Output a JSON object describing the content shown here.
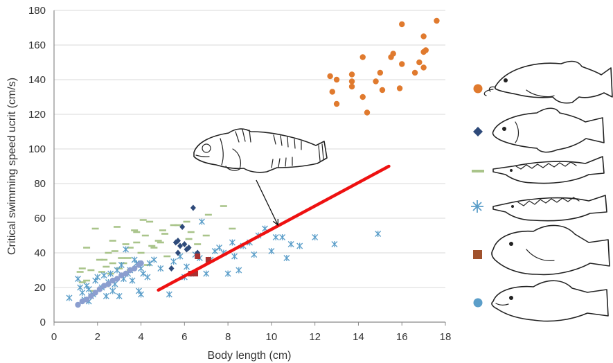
{
  "chart_data": {
    "type": "scatter",
    "title": "",
    "xlabel": "Body length (cm)",
    "ylabel": "Critical swimming speed ucrit (cm/s)",
    "xlim": [
      0,
      18
    ],
    "ylim": [
      0,
      180
    ],
    "xticks": [
      0,
      2,
      4,
      6,
      8,
      10,
      12,
      14,
      16,
      18
    ],
    "yticks": [
      0,
      20,
      40,
      60,
      80,
      100,
      120,
      140,
      160,
      180
    ],
    "grid": "horizontal",
    "legend": "right, fish drawings with marker keys",
    "colors": {
      "orange_circle": "#e07a2e",
      "dark_diamond": "#2e4a7a",
      "green_dash": "#a9c48a",
      "blue_asterisk": "#5b9ec9",
      "red_square": "#a83232",
      "light_circle": "#8b9ecf",
      "fit_line": "#ee1111"
    },
    "series": [
      {
        "marker": "orange-circle",
        "points": [
          [
            12.7,
            142
          ],
          [
            12.8,
            133
          ],
          [
            13,
            140
          ],
          [
            13,
            126
          ],
          [
            13.7,
            143
          ],
          [
            13.7,
            139
          ],
          [
            13.7,
            136
          ],
          [
            14.2,
            153
          ],
          [
            14.2,
            130
          ],
          [
            14.4,
            121
          ],
          [
            14.8,
            139
          ],
          [
            15,
            144
          ],
          [
            15.1,
            134
          ],
          [
            15.5,
            153
          ],
          [
            15.6,
            155
          ],
          [
            15.9,
            135
          ],
          [
            16,
            149
          ],
          [
            16,
            172
          ],
          [
            16.6,
            144
          ],
          [
            16.8,
            150
          ],
          [
            17,
            165
          ],
          [
            17,
            156
          ],
          [
            17,
            147
          ],
          [
            17.1,
            157
          ],
          [
            17.6,
            174
          ]
        ]
      },
      {
        "marker": "dark-diamond",
        "points": [
          [
            5.6,
            46
          ],
          [
            5.7,
            47
          ],
          [
            5.7,
            40
          ],
          [
            5.8,
            44
          ],
          [
            5.9,
            55
          ],
          [
            6.0,
            45
          ],
          [
            6.1,
            42
          ],
          [
            6.2,
            43
          ],
          [
            6.4,
            66
          ],
          [
            5.4,
            31
          ],
          [
            6.6,
            40
          ]
        ]
      },
      {
        "marker": "green-dash",
        "points": [
          [
            1.2,
            29
          ],
          [
            1.3,
            31
          ],
          [
            1.3,
            23
          ],
          [
            1.5,
            24
          ],
          [
            1.5,
            43
          ],
          [
            1.7,
            30
          ],
          [
            1.8,
            18
          ],
          [
            1.9,
            54
          ],
          [
            2.1,
            36
          ],
          [
            2.2,
            29
          ],
          [
            2.3,
            36
          ],
          [
            2.4,
            32
          ],
          [
            2.5,
            40
          ],
          [
            2.6,
            28
          ],
          [
            2.7,
            34
          ],
          [
            2.7,
            47
          ],
          [
            2.8,
            41
          ],
          [
            2.9,
            55
          ],
          [
            3,
            31
          ],
          [
            3.1,
            37
          ],
          [
            3.2,
            34
          ],
          [
            3.3,
            45
          ],
          [
            3.4,
            37
          ],
          [
            3.5,
            43
          ],
          [
            3.5,
            30
          ],
          [
            3.7,
            53
          ],
          [
            3.8,
            52
          ],
          [
            3.8,
            46
          ],
          [
            4,
            40
          ],
          [
            4.1,
            59
          ],
          [
            4.2,
            50
          ],
          [
            4.3,
            33
          ],
          [
            4.4,
            58
          ],
          [
            4.5,
            44
          ],
          [
            4.6,
            43
          ],
          [
            4.8,
            47
          ],
          [
            4.9,
            46
          ],
          [
            5,
            53
          ],
          [
            5.1,
            51
          ],
          [
            5.2,
            38
          ],
          [
            5.5,
            56
          ],
          [
            5.7,
            56
          ],
          [
            6.1,
            58
          ],
          [
            6.2,
            48
          ],
          [
            6.3,
            52
          ],
          [
            6.6,
            45
          ],
          [
            7.0,
            50
          ],
          [
            7.1,
            62
          ],
          [
            7.8,
            67
          ],
          [
            8.2,
            54
          ]
        ]
      },
      {
        "marker": "blue-asterisk",
        "points": [
          [
            0.7,
            14
          ],
          [
            1.1,
            25
          ],
          [
            1.2,
            20
          ],
          [
            1.3,
            17
          ],
          [
            1.4,
            13
          ],
          [
            1.5,
            21
          ],
          [
            1.6,
            19
          ],
          [
            1.6,
            12
          ],
          [
            1.7,
            15
          ],
          [
            1.8,
            16
          ],
          [
            1.9,
            24
          ],
          [
            2.0,
            26
          ],
          [
            2.2,
            20
          ],
          [
            2.3,
            27
          ],
          [
            2.4,
            15
          ],
          [
            2.5,
            23
          ],
          [
            2.6,
            28
          ],
          [
            2.7,
            18
          ],
          [
            2.8,
            22
          ],
          [
            2.9,
            30
          ],
          [
            3.0,
            15
          ],
          [
            3.1,
            33
          ],
          [
            3.2,
            25
          ],
          [
            3.3,
            42
          ],
          [
            3.4,
            28
          ],
          [
            3.5,
            30
          ],
          [
            3.6,
            24
          ],
          [
            3.7,
            36
          ],
          [
            3.8,
            34
          ],
          [
            3.9,
            18
          ],
          [
            4.0,
            16
          ],
          [
            4.0,
            31
          ],
          [
            4.1,
            28
          ],
          [
            4.3,
            26
          ],
          [
            4.4,
            34
          ],
          [
            4.6,
            36
          ],
          [
            4.9,
            31
          ],
          [
            5.3,
            16
          ],
          [
            5.5,
            35
          ],
          [
            5.8,
            38
          ],
          [
            6.0,
            26
          ],
          [
            6.1,
            32
          ],
          [
            6.3,
            28
          ],
          [
            6.5,
            39
          ],
          [
            6.7,
            37
          ],
          [
            6.8,
            58
          ],
          [
            7.0,
            28
          ],
          [
            7.2,
            36
          ],
          [
            7.4,
            41
          ],
          [
            7.6,
            43
          ],
          [
            7.8,
            40
          ],
          [
            8.0,
            28
          ],
          [
            8.2,
            46
          ],
          [
            8.3,
            38
          ],
          [
            8.5,
            30
          ],
          [
            8.7,
            44
          ],
          [
            9.0,
            46
          ],
          [
            9.2,
            39
          ],
          [
            9.4,
            50
          ],
          [
            9.7,
            54
          ],
          [
            10.0,
            41
          ],
          [
            10.2,
            49
          ],
          [
            10.5,
            49
          ],
          [
            10.7,
            37
          ],
          [
            10.9,
            45
          ],
          [
            11.3,
            44
          ],
          [
            12.0,
            49
          ],
          [
            12.9,
            45
          ],
          [
            14.9,
            51
          ]
        ]
      },
      {
        "marker": "red-square",
        "points": [
          [
            6.3,
            28
          ],
          [
            6.5,
            28
          ],
          [
            6.6,
            38
          ],
          [
            7.1,
            36
          ]
        ]
      },
      {
        "marker": "light-circle",
        "points": [
          [
            1.1,
            10
          ],
          [
            1.3,
            12
          ],
          [
            1.5,
            13
          ],
          [
            1.7,
            15
          ],
          [
            1.9,
            17
          ],
          [
            2.1,
            19
          ],
          [
            2.3,
            21
          ],
          [
            2.5,
            22
          ],
          [
            2.7,
            24
          ],
          [
            2.9,
            25
          ],
          [
            3.1,
            27
          ],
          [
            3.3,
            28
          ],
          [
            3.5,
            30
          ],
          [
            3.7,
            31
          ],
          [
            3.9,
            33
          ],
          [
            4.0,
            34
          ]
        ]
      }
    ],
    "fit_line": {
      "x": [
        4.8,
        15.4
      ],
      "y": [
        18.5,
        90
      ]
    },
    "annotation_arrow": {
      "from": [
        9.3,
        82
      ],
      "to": [
        10.3,
        56
      ]
    }
  }
}
